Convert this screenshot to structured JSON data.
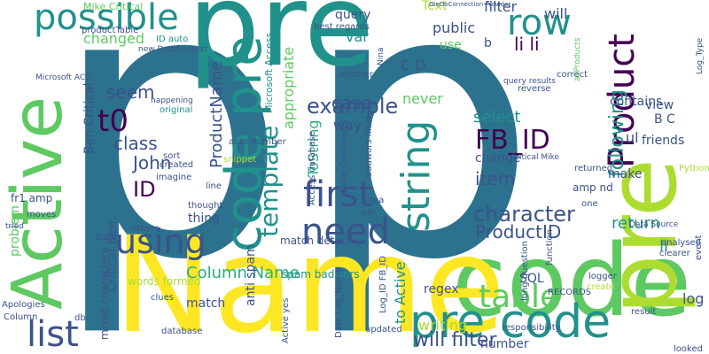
{
  "palette": [
    "#440154",
    "#3b528b",
    "#2c728e",
    "#21918c",
    "#28ae80",
    "#5ec962",
    "#addc30",
    "#fde725"
  ],
  "words": [
    {
      "t": "p",
      "c": "#2c728e"
    },
    {
      "t": "p",
      "c": "#2c728e"
    },
    {
      "t": "pre",
      "c": "#21918c"
    },
    {
      "t": "code",
      "c": "#5ec962"
    },
    {
      "t": "Name",
      "c": "#fde725"
    },
    {
      "t": "Active",
      "c": "#5ec962"
    },
    {
      "t": "pre",
      "c": "#addc30"
    },
    {
      "t": "code pre",
      "c": "#21918c"
    },
    {
      "t": "pre code",
      "c": "#21918c"
    },
    {
      "t": "possible",
      "c": "#21918c"
    },
    {
      "t": "Product",
      "c": "#440154"
    },
    {
      "t": "row",
      "c": "#21918c"
    },
    {
      "t": "string",
      "c": "#21918c"
    },
    {
      "t": "need",
      "c": "#3b528b"
    },
    {
      "t": "first",
      "c": "#3b528b"
    },
    {
      "t": "using",
      "c": "#3b528b"
    },
    {
      "t": "list",
      "c": "#3b528b"
    },
    {
      "t": "table",
      "c": "#5ec962"
    },
    {
      "t": "t0",
      "c": "#440154"
    },
    {
      "t": "FB_ID",
      "c": "#440154"
    },
    {
      "t": "template",
      "c": "#21918c"
    },
    {
      "t": "character",
      "c": "#3b528b"
    },
    {
      "t": "example",
      "c": "#3b528b"
    },
    {
      "t": "following",
      "c": "#21918c"
    },
    {
      "t": "ProductID",
      "c": "#3b528b"
    },
    {
      "t": "Column Name",
      "c": "#28ae80"
    },
    {
      "t": "ID",
      "c": "#440154"
    },
    {
      "t": "John",
      "c": "#3b528b"
    },
    {
      "t": "class",
      "c": "#3b528b"
    },
    {
      "t": "seem",
      "c": "#3b528b"
    },
    {
      "t": "case",
      "c": "#3b528b"
    },
    {
      "t": "li li",
      "c": "#440154"
    },
    {
      "t": "will filter",
      "c": "#3b528b"
    },
    {
      "t": "select",
      "c": "#21918c"
    },
    {
      "t": "item",
      "c": "#3b528b"
    },
    {
      "t": "return",
      "c": "#21918c"
    },
    {
      "t": "ProductName",
      "c": "#3b528b"
    },
    {
      "t": "changed",
      "c": "#5ec962"
    },
    {
      "t": "appropriate",
      "c": "#5ec962"
    },
    {
      "t": "Critical Ben",
      "c": "#3b528b"
    },
    {
      "t": "Ben Critical",
      "c": "#3b528b"
    },
    {
      "t": "match",
      "c": "#3b528b"
    },
    {
      "t": "anti spam",
      "c": "#3b528b"
    },
    {
      "t": "writing",
      "c": "#addc30"
    },
    {
      "t": "number",
      "c": "#3b528b"
    },
    {
      "t": "ToString",
      "c": "#28ae80"
    },
    {
      "t": "to Active",
      "c": "#21918c"
    },
    {
      "t": "var",
      "c": "#21918c"
    },
    {
      "t": "query",
      "c": "#3b528b"
    },
    {
      "t": "public",
      "c": "#3b528b"
    },
    {
      "t": "will",
      "c": "#3b528b"
    },
    {
      "t": "filter",
      "c": "#3b528b"
    },
    {
      "t": "contains",
      "c": "#3b528b"
    },
    {
      "t": "way",
      "c": "#3b528b"
    },
    {
      "t": "never",
      "c": "#5ec962"
    },
    {
      "t": "ul",
      "c": "#3b528b"
    },
    {
      "t": "friends",
      "c": "#3b528b"
    },
    {
      "t": "make",
      "c": "#3b528b"
    },
    {
      "t": "change",
      "c": "#3b528b"
    },
    {
      "t": "log",
      "c": "#3b528b"
    },
    {
      "t": "li",
      "c": "#21918c"
    },
    {
      "t": "view",
      "c": "#3b528b"
    },
    {
      "t": "regex",
      "c": "#3b528b"
    },
    {
      "t": "C D",
      "c": "#3b528b"
    },
    {
      "t": "B C",
      "c": "#3b528b"
    },
    {
      "t": "b",
      "c": "#3b528b"
    },
    {
      "t": "fr1 amp",
      "c": "#3b528b"
    },
    {
      "t": "thing",
      "c": "#3b528b"
    },
    {
      "t": "problem",
      "c": "#5ec962"
    },
    {
      "t": "Text",
      "c": "#addc30"
    },
    {
      "t": "use",
      "c": "#5ec962"
    },
    {
      "t": "words formed",
      "c": "#addc30"
    },
    {
      "t": "mixed characters",
      "c": "#3b528b"
    },
    {
      "t": "spam badwors",
      "c": "#21918c"
    },
    {
      "t": "match detect",
      "c": "#3b528b"
    },
    {
      "t": "amp nd",
      "c": "#3b528b"
    },
    {
      "t": "SQL",
      "c": "#3b528b"
    },
    {
      "t": "Mike Critical",
      "c": "#5ec962"
    },
    {
      "t": "productTable",
      "c": "#3b528b"
    },
    {
      "t": "ID auto",
      "c": "#21918c"
    },
    {
      "t": "best regards",
      "c": "#3b528b"
    },
    {
      "t": "Microsoft Access",
      "c": "#21918c"
    },
    {
      "t": "auto number",
      "c": "#3b528b"
    },
    {
      "t": "snippet",
      "c": "#addc30"
    },
    {
      "t": "original",
      "c": "#21918c"
    },
    {
      "t": "sort",
      "c": "#3b528b"
    },
    {
      "t": "created",
      "c": "#3b528b"
    },
    {
      "t": "imagine",
      "c": "#3b528b"
    },
    {
      "t": "moves",
      "c": "#3b528b"
    },
    {
      "t": "line",
      "c": "#3b528b"
    },
    {
      "t": "thought",
      "c": "#3b528b"
    },
    {
      "t": "others",
      "c": "#3b528b"
    },
    {
      "t": "clues",
      "c": "#3b528b"
    },
    {
      "t": "Date",
      "c": "#3b528b"
    },
    {
      "t": "database",
      "c": "#3b528b"
    },
    {
      "t": "Access database",
      "c": "#3b528b"
    },
    {
      "t": "table Customers",
      "c": "#3b528b"
    },
    {
      "t": "badwors filter",
      "c": "#3b528b"
    },
    {
      "t": "Log_ID FB_ID",
      "c": "#3b528b"
    },
    {
      "t": "Date Log_Name",
      "c": "#3b528b"
    },
    {
      "t": "Active yes",
      "c": "#3b528b"
    },
    {
      "t": "updated",
      "c": "#3b528b"
    },
    {
      "t": "idea",
      "c": "#3b528b"
    },
    {
      "t": "per",
      "c": "#3b528b"
    },
    {
      "t": "long question",
      "c": "#3b528b"
    },
    {
      "t": "RECORDS",
      "c": "#3b528b"
    },
    {
      "t": "function",
      "c": "#3b528b"
    },
    {
      "t": "one",
      "c": "#3b528b"
    },
    {
      "t": "correct",
      "c": "#3b528b"
    },
    {
      "t": "reverse",
      "c": "#3b528b"
    },
    {
      "t": "query results",
      "c": "#3b528b"
    },
    {
      "t": "Critical Mike",
      "c": "#3b528b"
    },
    {
      "t": "returned",
      "c": "#3b528b"
    },
    {
      "t": "Data Source",
      "c": "#3b528b"
    },
    {
      "t": "Python",
      "c": "#addc30"
    },
    {
      "t": "clearer",
      "c": "#3b528b"
    },
    {
      "t": "analysed",
      "c": "#3b528b"
    },
    {
      "t": "result",
      "c": "#3b528b"
    },
    {
      "t": "create",
      "c": "#addc30"
    },
    {
      "t": "logger",
      "c": "#3b528b"
    },
    {
      "t": "responsibility",
      "c": "#3b528b"
    },
    {
      "t": "looked",
      "c": "#3b528b"
    },
    {
      "t": "event",
      "c": "#3b528b"
    },
    {
      "t": "Apologies",
      "c": "#3b528b"
    },
    {
      "t": "Column",
      "c": "#3b528b"
    },
    {
      "t": "tried",
      "c": "#3b528b"
    },
    {
      "t": "db",
      "c": "#3b528b"
    },
    {
      "t": "another",
      "c": "#3b528b"
    },
    {
      "t": "Nina",
      "c": "#3b528b"
    },
    {
      "t": "Microsoft ACE",
      "c": "#3b528b"
    },
    {
      "t": "new DataContext",
      "c": "#3b528b"
    },
    {
      "t": "happening",
      "c": "#3b528b"
    },
    {
      "t": "Log_Type",
      "c": "#3b528b"
    },
    {
      "t": "allProducts",
      "c": "#5ec962"
    },
    {
      "t": "OleDbConnection Provider",
      "c": "#3b528b"
    }
  ]
}
